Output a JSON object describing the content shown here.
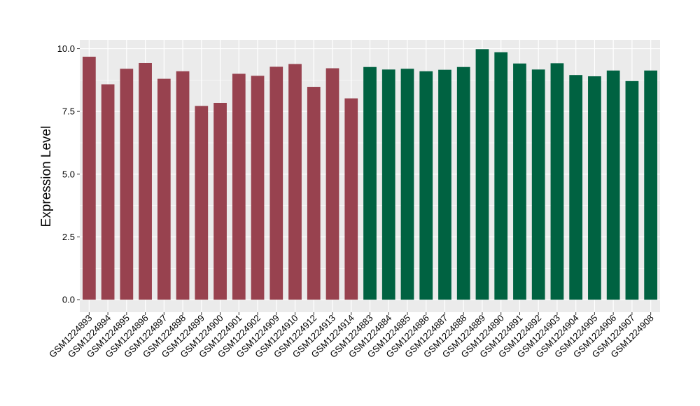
{
  "chart_data": {
    "type": "bar",
    "ylabel": "Expression Level",
    "xlabel": "",
    "ylim": [
      -0.5,
      10.35
    ],
    "yticks": [
      0.0,
      2.5,
      5.0,
      7.5,
      10.0
    ],
    "ytick_labels": [
      "0.0",
      "2.5",
      "5.0",
      "7.5",
      "10.0"
    ],
    "grid": true,
    "legend": "none",
    "colors": {
      "panel_bg": "#ebebeb",
      "grid": "#ffffff",
      "group1": "#98424f",
      "group2": "#006241",
      "text": "#000000"
    },
    "categories": [
      "GSM1224893",
      "GSM1224894",
      "GSM1224895",
      "GSM1224896",
      "GSM1224897",
      "GSM1224898",
      "GSM1224899",
      "GSM1224900",
      "GSM1224901",
      "GSM1224902",
      "GSM1224909",
      "GSM1224910",
      "GSM1224912",
      "GSM1224913",
      "GSM1224914",
      "GSM1224883",
      "GSM1224884",
      "GSM1224885",
      "GSM1224886",
      "GSM1224887",
      "GSM1224888",
      "GSM1224889",
      "GSM1224890",
      "GSM1224891",
      "GSM1224892",
      "GSM1224903",
      "GSM1224904",
      "GSM1224905",
      "GSM1224906",
      "GSM1224907",
      "GSM1224908"
    ],
    "values": [
      9.68,
      8.58,
      9.2,
      9.43,
      8.8,
      9.1,
      7.72,
      7.84,
      9.0,
      8.92,
      9.28,
      9.39,
      8.48,
      9.22,
      8.02,
      9.27,
      9.17,
      9.2,
      9.1,
      9.16,
      9.27,
      9.98,
      9.86,
      9.41,
      9.17,
      9.42,
      8.95,
      8.9,
      9.13,
      8.71,
      9.13
    ],
    "groups": [
      1,
      1,
      1,
      1,
      1,
      1,
      1,
      1,
      1,
      1,
      1,
      1,
      1,
      1,
      1,
      2,
      2,
      2,
      2,
      2,
      2,
      2,
      2,
      2,
      2,
      2,
      2,
      2,
      2,
      2,
      2
    ]
  }
}
